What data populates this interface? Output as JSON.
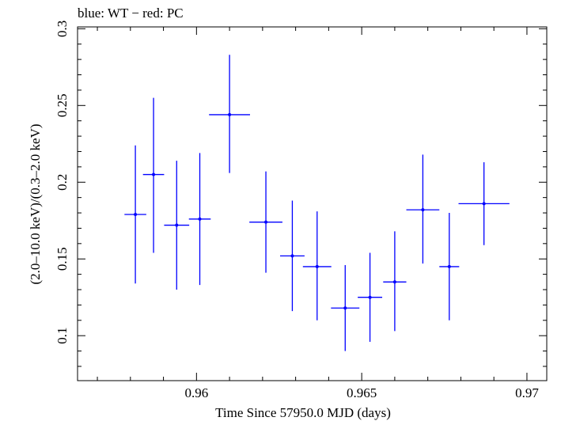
{
  "chart_data": {
    "type": "scatter",
    "title": "blue: WT − red: PC",
    "xlabel": "Time Since 57950.0 MJD (days)",
    "ylabel": "(2.0–10.0 keV)/(0.3–2.0 keV)",
    "xlim": [
      0.9564,
      0.9706
    ],
    "ylim": [
      0.0707,
      0.3012
    ],
    "x_ticks": [
      0.96,
      0.965,
      0.97
    ],
    "x_tick_labels": [
      "0.96",
      "0.965",
      "0.97"
    ],
    "y_ticks": [
      0.1,
      0.15,
      0.2,
      0.25,
      0.3
    ],
    "y_tick_labels": [
      "0.1",
      "0.15",
      "0.2",
      "0.25",
      "0.3"
    ],
    "grid": false,
    "series": [
      {
        "color": "#0000ff",
        "points": [
          {
            "x": 0.95815,
            "xerr": 0.00033,
            "y": 0.179,
            "yerr_lo": 0.045,
            "yerr_hi": 0.045
          },
          {
            "x": 0.9587,
            "xerr": 0.00032,
            "y": 0.205,
            "yerr_lo": 0.051,
            "yerr_hi": 0.05
          },
          {
            "x": 0.9594,
            "xerr": 0.00038,
            "y": 0.172,
            "yerr_lo": 0.042,
            "yerr_hi": 0.042
          },
          {
            "x": 0.9601,
            "xerr": 0.00033,
            "y": 0.176,
            "yerr_lo": 0.043,
            "yerr_hi": 0.043
          },
          {
            "x": 0.961,
            "xerr": 0.00062,
            "y": 0.244,
            "yerr_lo": 0.038,
            "yerr_hi": 0.039
          },
          {
            "x": 0.9621,
            "xerr": 0.0005,
            "y": 0.174,
            "yerr_lo": 0.033,
            "yerr_hi": 0.033
          },
          {
            "x": 0.9629,
            "xerr": 0.00037,
            "y": 0.152,
            "yerr_lo": 0.036,
            "yerr_hi": 0.036
          },
          {
            "x": 0.96365,
            "xerr": 0.00043,
            "y": 0.145,
            "yerr_lo": 0.035,
            "yerr_hi": 0.036
          },
          {
            "x": 0.9645,
            "xerr": 0.00043,
            "y": 0.118,
            "yerr_lo": 0.028,
            "yerr_hi": 0.028
          },
          {
            "x": 0.96525,
            "xerr": 0.00037,
            "y": 0.125,
            "yerr_lo": 0.029,
            "yerr_hi": 0.029
          },
          {
            "x": 0.966,
            "xerr": 0.00035,
            "y": 0.135,
            "yerr_lo": 0.032,
            "yerr_hi": 0.033
          },
          {
            "x": 0.96685,
            "xerr": 0.0005,
            "y": 0.182,
            "yerr_lo": 0.035,
            "yerr_hi": 0.036
          },
          {
            "x": 0.96765,
            "xerr": 0.0003,
            "y": 0.145,
            "yerr_lo": 0.035,
            "yerr_hi": 0.035
          },
          {
            "x": 0.9687,
            "xerr": 0.00077,
            "y": 0.186,
            "yerr_lo": 0.027,
            "yerr_hi": 0.027
          }
        ]
      }
    ]
  }
}
